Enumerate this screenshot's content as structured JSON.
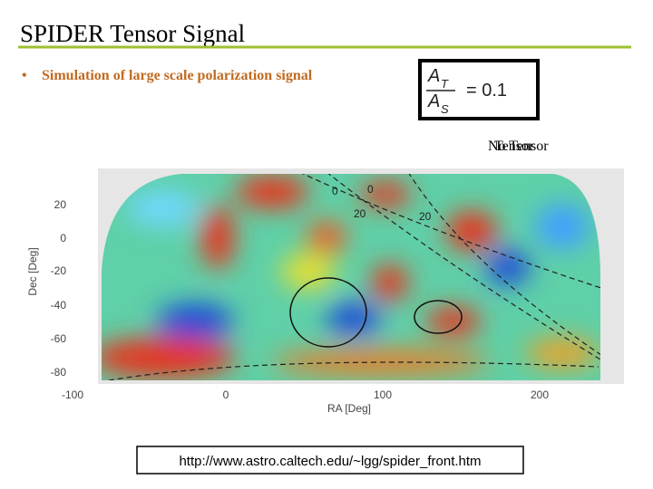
{
  "header": {
    "title": "SPIDER Tensor Signal"
  },
  "bullets": [
    "Simulation of large scale polarization signal"
  ],
  "formula": {
    "numerator": "A",
    "numerator_sub": "T",
    "denominator": "A",
    "denominator_sub": "S",
    "rhs": "= 0.1"
  },
  "overlay_labels": [
    "No Tensor",
    "Tensor"
  ],
  "figure": {
    "y_label": "Dec [Deg]",
    "x_label": "RA [Deg]",
    "y_ticks": [
      20,
      0,
      -20,
      -40,
      -60,
      -80
    ],
    "x_ticks": [
      -100,
      0,
      100,
      200
    ],
    "contour_labels": [
      "0",
      "0",
      "20",
      "20"
    ]
  },
  "footer": {
    "url": "http://www.astro.caltech.edu/~lgg/spider_front.htm"
  }
}
